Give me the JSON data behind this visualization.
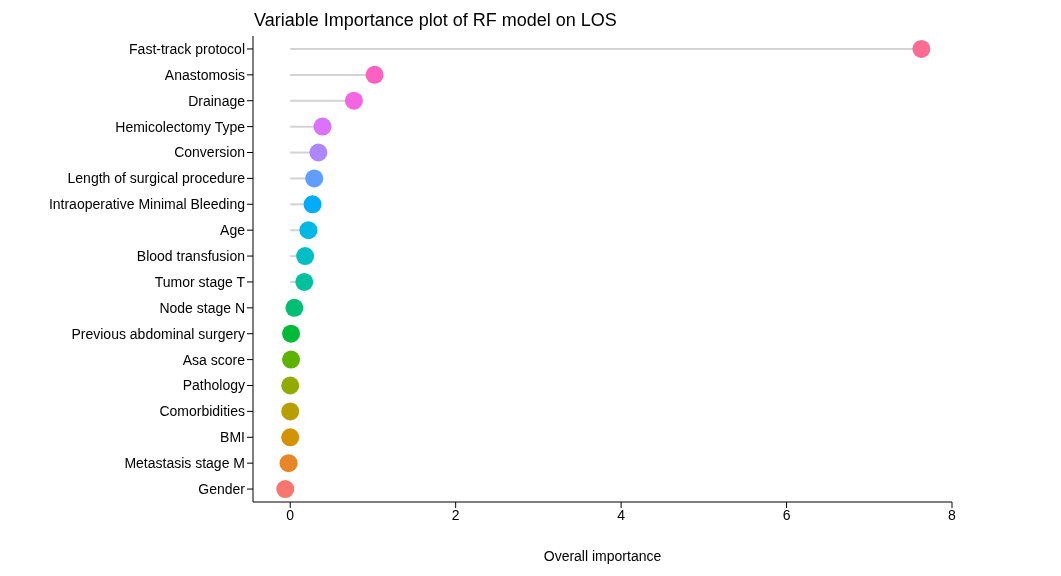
{
  "chart_data": {
    "type": "lollipop",
    "orientation": "horizontal",
    "title": "Variable Importance plot of RF model on LOS",
    "xlabel": "Overall importance",
    "categories": [
      "Fast-track protocol",
      "Anastomosis",
      "Drainage",
      "Hemicolectomy Type",
      "Conversion",
      "Length of surgical procedure",
      "Intraoperative Minimal Bleeding",
      "Age",
      "Blood transfusion",
      "Tumor stage T",
      "Node stage N",
      "Previous abdominal surgery",
      "Asa score",
      "Pathology",
      "Comorbidities",
      "BMI",
      "Metastasis stage M",
      "Gender"
    ],
    "values": [
      7.63,
      1.02,
      0.77,
      0.39,
      0.34,
      0.29,
      0.27,
      0.22,
      0.18,
      0.17,
      0.05,
      0.01,
      0.01,
      0,
      0,
      0,
      -0.02,
      -0.06
    ],
    "colors": [
      "#FF6C91",
      "#FF61C3",
      "#F564E3",
      "#DB72FB",
      "#AE87FF",
      "#619CFF",
      "#00ADFA",
      "#00B9E3",
      "#00BFC4",
      "#00C19F",
      "#00BF74",
      "#00BA38",
      "#5EB300",
      "#93AA00",
      "#B79F00",
      "#D39200",
      "#E88526",
      "#F8766D"
    ],
    "xlim": [
      -0.45,
      8
    ],
    "xticks": [
      0,
      2,
      4,
      6,
      8
    ],
    "grid": false
  }
}
